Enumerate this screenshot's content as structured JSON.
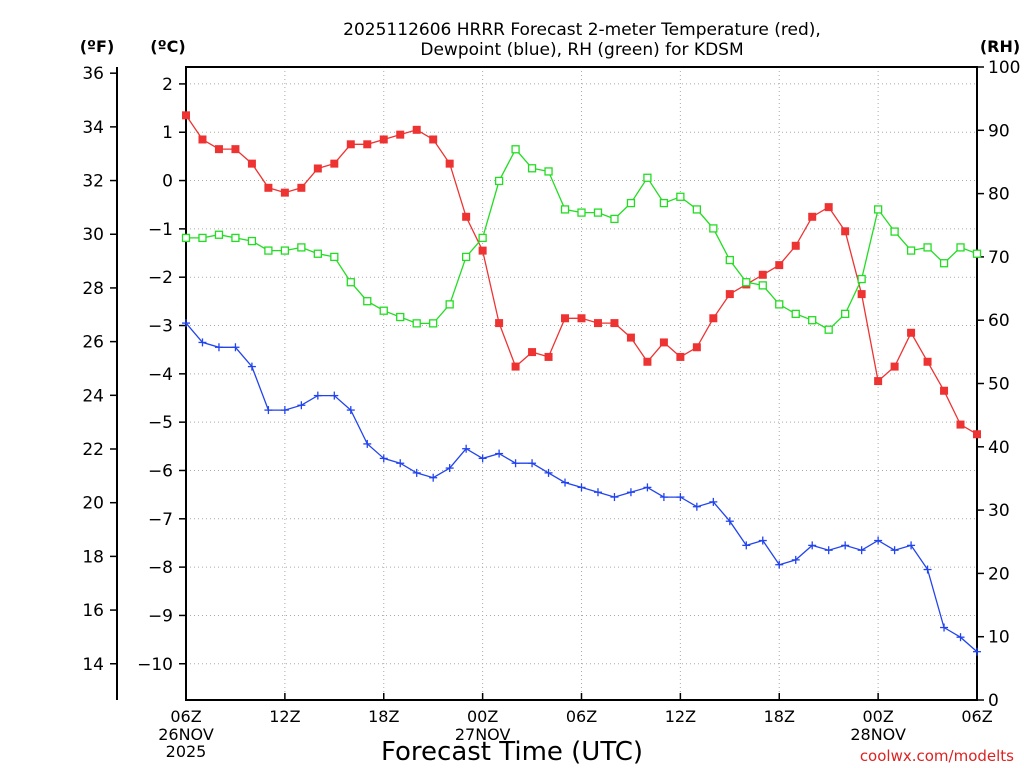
{
  "chart_data": {
    "type": "line",
    "title_line1": "2025112606 HRRR Forecast 2-meter Temperature (red),",
    "title_line2": "Dewpoint (blue), RH (green) for KDSM",
    "axis_labels": {
      "fahrenheit": "(ºF)",
      "celsius": "(ºC)",
      "rh": "(RH)"
    },
    "xlabel": "Forecast Time (UTC)",
    "credit": "coolwx.com/modelts",
    "x_hours_range": [
      0,
      48
    ],
    "celsius_range": [
      -10.75,
      2.35
    ],
    "fahrenheit_ticks": [
      14,
      16,
      18,
      20,
      22,
      24,
      26,
      28,
      30,
      32,
      34,
      36
    ],
    "celsius_ticks": [
      -10,
      -9,
      -8,
      -7,
      -6,
      -5,
      -4,
      -3,
      -2,
      -1,
      0,
      1,
      2
    ],
    "rh_ticks": [
      0,
      10,
      20,
      30,
      40,
      50,
      60,
      70,
      80,
      90,
      100
    ],
    "x_ticks": [
      {
        "h": 0,
        "label": "06Z",
        "sub1": "26NOV",
        "sub2": "2025"
      },
      {
        "h": 6,
        "label": "12Z"
      },
      {
        "h": 12,
        "label": "18Z"
      },
      {
        "h": 18,
        "label": "00Z",
        "sub1": "27NOV"
      },
      {
        "h": 24,
        "label": "06Z"
      },
      {
        "h": 30,
        "label": "12Z"
      },
      {
        "h": 36,
        "label": "18Z"
      },
      {
        "h": 42,
        "label": "00Z",
        "sub1": "28NOV"
      },
      {
        "h": 48,
        "label": "06Z"
      }
    ],
    "series": [
      {
        "name": "Temperature (°C)",
        "axis": "celsius",
        "color": "#ee3333",
        "marker": "filled-square",
        "values": [
          1.35,
          0.85,
          0.65,
          0.65,
          0.35,
          -0.15,
          -0.25,
          -0.15,
          0.25,
          0.35,
          0.75,
          0.75,
          0.85,
          0.95,
          1.05,
          0.85,
          0.35,
          -0.75,
          -1.45,
          -2.95,
          -3.85,
          -3.55,
          -3.65,
          -2.85,
          -2.85,
          -2.95,
          -2.95,
          -3.25,
          -3.75,
          -3.35,
          -3.65,
          -3.45,
          -2.85,
          -2.35,
          -2.15,
          -1.95,
          -1.75,
          -1.35,
          -0.75,
          -0.55,
          -1.05,
          -2.35,
          -4.15,
          -3.85,
          -3.15,
          -3.75,
          -4.35,
          -5.05,
          -5.25
        ]
      },
      {
        "name": "Dewpoint (°C)",
        "axis": "celsius",
        "color": "#2244ee",
        "marker": "plus",
        "values": [
          -2.95,
          -3.35,
          -3.45,
          -3.45,
          -3.85,
          -4.75,
          -4.75,
          -4.65,
          -4.45,
          -4.45,
          -4.75,
          -5.45,
          -5.75,
          -5.85,
          -6.05,
          -6.15,
          -5.95,
          -5.55,
          -5.75,
          -5.65,
          -5.85,
          -5.85,
          -6.05,
          -6.25,
          -6.35,
          -6.45,
          -6.55,
          -6.45,
          -6.35,
          -6.55,
          -6.55,
          -6.75,
          -6.65,
          -7.05,
          -7.55,
          -7.45,
          -7.95,
          -7.85,
          -7.55,
          -7.65,
          -7.55,
          -7.65,
          -7.45,
          -7.65,
          -7.55,
          -8.05,
          -9.25,
          -9.45,
          -9.75
        ]
      },
      {
        "name": "RH (%)",
        "axis": "rh",
        "color": "#22dd22",
        "marker": "open-square",
        "values": [
          73,
          73,
          73.5,
          73,
          72.5,
          71,
          71,
          71.5,
          70.5,
          70,
          66,
          63,
          61.5,
          60.5,
          59.5,
          59.5,
          62.5,
          70,
          73,
          82,
          87,
          84,
          83.5,
          77.5,
          77,
          77,
          76,
          78.5,
          82.5,
          78.5,
          79.5,
          77.5,
          74.5,
          69.5,
          66,
          65.5,
          62.5,
          61,
          60,
          58.5,
          61,
          66.5,
          77.5,
          74,
          71,
          71.5,
          69,
          71.5,
          70.5
        ]
      }
    ]
  }
}
